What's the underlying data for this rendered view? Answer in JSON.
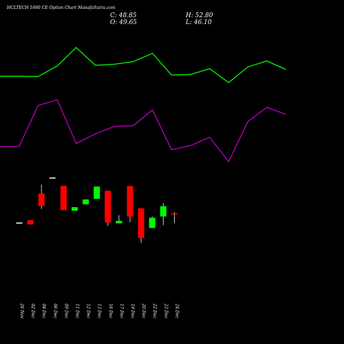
{
  "header": {
    "title": "HCLTECH 1660  CE Option  Chart ManafaSutra.com",
    "close": "C: 48.85",
    "high": "H: 52.80",
    "open": "O: 49.65",
    "low": "L: 46.10"
  },
  "colors": {
    "background": "#000000",
    "up": "#00ff00",
    "down": "#ff0000",
    "line_green": "#00ff00",
    "line_magenta": "#c000c0",
    "text": "#ffffff"
  },
  "chart_data": {
    "type": "candlestick",
    "categories": [
      "26 Nov",
      "02 Dec",
      "04 Dec",
      "06 Dec",
      "09 Dec",
      "11 Dec",
      "12 Dec",
      "13 Dec",
      "16 Dec",
      "17 Dec",
      "19 Dec",
      "20 Dec",
      "22 Dec",
      "23 Dec",
      "24 Dec"
    ],
    "candles": [
      {
        "o": 18.4,
        "h": 18.4,
        "l": 18.0,
        "c": 18.0,
        "dir": "flat"
      },
      {
        "o": 20.6,
        "h": 20.6,
        "l": 16.7,
        "c": 16.7,
        "dir": "down"
      },
      {
        "o": 44.7,
        "h": 52.8,
        "l": 30.7,
        "c": 33.3,
        "dir": "down"
      },
      {
        "o": 59.2,
        "h": 59.2,
        "l": 58.4,
        "c": 58.4,
        "dir": "flat"
      },
      {
        "o": 51.7,
        "h": 51.7,
        "l": 29.7,
        "c": 29.7,
        "dir": "down"
      },
      {
        "o": 29.1,
        "h": 32.3,
        "l": 29.1,
        "c": 32.3,
        "dir": "up"
      },
      {
        "o": 35.0,
        "h": 39.3,
        "l": 35.0,
        "c": 39.3,
        "dir": "up"
      },
      {
        "o": 39.9,
        "h": 51.0,
        "l": 39.9,
        "c": 51.0,
        "dir": "up"
      },
      {
        "o": 47.2,
        "h": 47.2,
        "l": 15.5,
        "c": 18.5,
        "dir": "down"
      },
      {
        "o": 17.7,
        "h": 25.0,
        "l": 17.7,
        "c": 19.9,
        "dir": "up"
      },
      {
        "o": 51.5,
        "h": 51.5,
        "l": 18.6,
        "c": 23.8,
        "dir": "down"
      },
      {
        "o": 31.3,
        "h": 31.3,
        "l": 0.0,
        "c": 4.5,
        "dir": "down"
      },
      {
        "o": 13.5,
        "h": 23.9,
        "l": 13.5,
        "c": 22.7,
        "dir": "up"
      },
      {
        "o": 23.9,
        "h": 36.0,
        "l": 16.0,
        "c": 33.2,
        "dir": "up"
      },
      {
        "o": 26.6,
        "h": 27.9,
        "l": 17.9,
        "c": 25.7,
        "dir": "down"
      }
    ],
    "green_line": [
      104.4,
      104.4,
      104.2,
      111.2,
      123.6,
      111.7,
      112.4,
      114.2,
      119.7,
      105.2,
      105.6,
      109.4,
      100.2,
      110.6,
      114.6,
      108.9
    ],
    "magenta_line": [
      111.8,
      111.8,
      145.1,
      149.8,
      114.2,
      122.0,
      128.1,
      128.8,
      141.6,
      109.2,
      112.6,
      119.4,
      99.5,
      132.0,
      143.6,
      138.0
    ]
  }
}
